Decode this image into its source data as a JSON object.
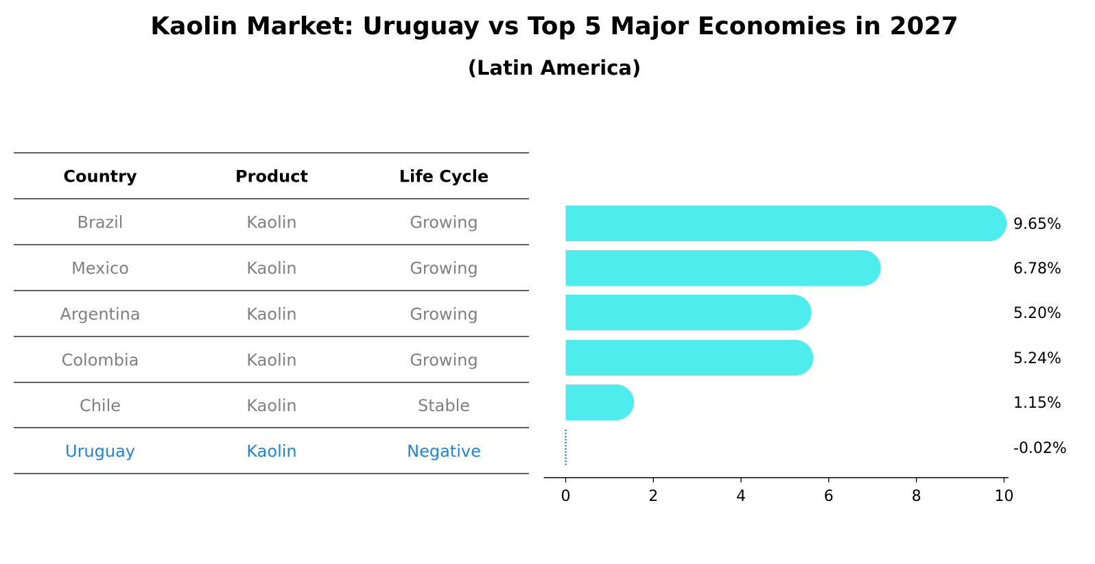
{
  "chart_data": {
    "type": "bar",
    "orientation": "horizontal",
    "title": "Kaolin Market: Uruguay vs Top 5 Major Economies in 2027",
    "subtitle": "(Latin America)",
    "table": {
      "columns": [
        "Country",
        "Product",
        "Life Cycle"
      ],
      "rows": [
        [
          "Brazil",
          "Kaolin",
          "Growing"
        ],
        [
          "Mexico",
          "Kaolin",
          "Growing"
        ],
        [
          "Argentina",
          "Kaolin",
          "Growing"
        ],
        [
          "Colombia",
          "Kaolin",
          "Growing"
        ],
        [
          "Chile",
          "Kaolin",
          "Stable"
        ],
        [
          "Uruguay",
          "Kaolin",
          "Negative"
        ]
      ],
      "highlight_row": 5
    },
    "categories": [
      "Brazil",
      "Mexico",
      "Argentina",
      "Colombia",
      "Chile",
      "Uruguay"
    ],
    "values": [
      9.65,
      6.78,
      5.2,
      5.24,
      1.15,
      -0.02
    ],
    "value_labels": [
      "9.65%",
      "6.78%",
      "5.20%",
      "5.24%",
      "1.15%",
      "-0.02%"
    ],
    "xlim": [
      -0.5,
      10.1
    ],
    "xticks": [
      0,
      2,
      4,
      6,
      8,
      10
    ],
    "grid": false,
    "colors": {
      "bar": "#4eecec",
      "highlight": "#1f84d6",
      "muted_text": "#808080",
      "rule": "#000000"
    }
  }
}
